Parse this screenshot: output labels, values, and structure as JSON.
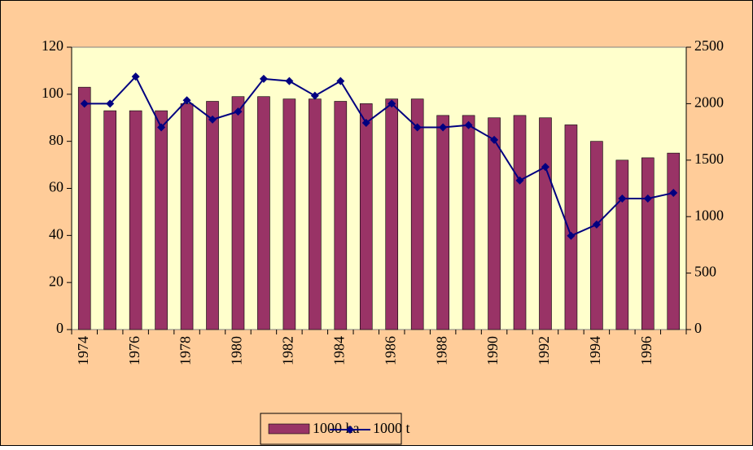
{
  "chart_data": {
    "type": "bar_line",
    "categories": [
      "1974",
      null,
      "1976",
      null,
      "1978",
      null,
      "1980",
      null,
      "1982",
      null,
      "1984",
      null,
      "1986",
      null,
      "1988",
      null,
      "1990",
      null,
      "1992",
      null,
      "1994",
      null,
      "1996",
      null
    ],
    "series": [
      {
        "name": "1000 ha",
        "type": "bar",
        "color": "#993366",
        "axis": "y",
        "values": [
          103,
          93,
          93,
          93,
          96,
          97,
          99,
          99,
          98,
          98,
          97,
          96,
          98,
          98,
          91,
          91,
          90,
          91,
          90,
          87,
          80,
          72,
          73,
          75
        ]
      },
      {
        "name": "1000 t",
        "type": "line",
        "color": "#000080",
        "axis": "y2",
        "values": [
          2000,
          2000,
          2240,
          1790,
          2030,
          1860,
          1930,
          2220,
          2200,
          2070,
          2200,
          1830,
          2000,
          1790,
          1790,
          1810,
          1680,
          1320,
          1440,
          830,
          930,
          1160,
          1160,
          1210
        ]
      }
    ],
    "ylim": [
      0,
      120
    ],
    "yticks": [
      0,
      20,
      40,
      60,
      80,
      100,
      120
    ],
    "y2lim": [
      0,
      2500
    ],
    "y2ticks": [
      0,
      500,
      1000,
      1500,
      2000,
      2500
    ],
    "legend": "bottom"
  }
}
